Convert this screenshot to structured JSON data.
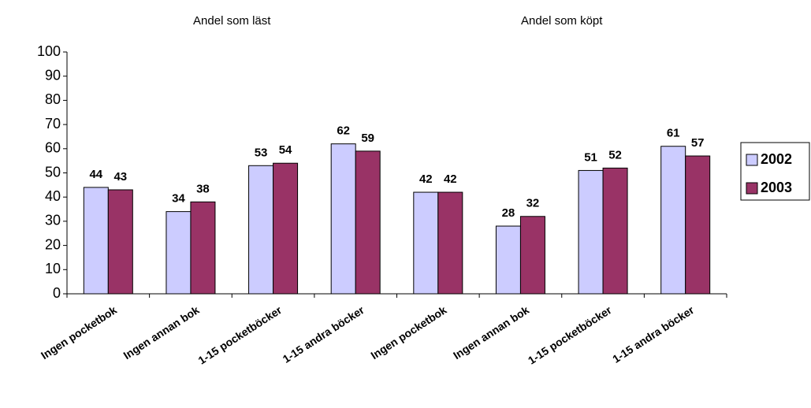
{
  "chart_data": {
    "type": "bar",
    "annotations": [
      "Andel som läst",
      "Andel som köpt"
    ],
    "categories": [
      "Ingen pocketbok",
      "Ingen annan bok",
      "1-15 pocketböcker",
      "1-15 andra böcker",
      "Ingen pocketbok",
      "Ingen annan bok",
      "1-15 pocketböcker",
      "1-15 andra böcker"
    ],
    "series": [
      {
        "name": "2002",
        "color": "#ccccff",
        "values": [
          44,
          34,
          53,
          62,
          42,
          28,
          51,
          61
        ]
      },
      {
        "name": "2003",
        "color": "#993366",
        "values": [
          43,
          38,
          54,
          59,
          42,
          32,
          52,
          57
        ]
      }
    ],
    "ylim": [
      0,
      100
    ],
    "yticks": [
      0,
      10,
      20,
      30,
      40,
      50,
      60,
      70,
      80,
      90,
      100
    ],
    "grid": false,
    "legend": "right"
  }
}
